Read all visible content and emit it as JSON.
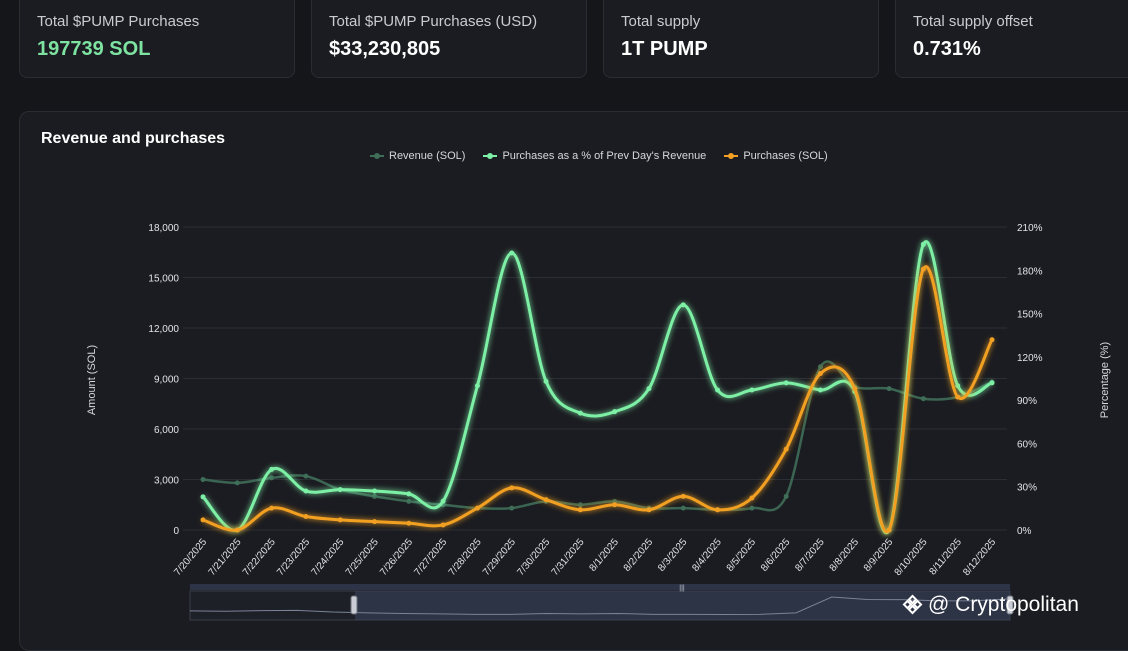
{
  "stats": [
    {
      "label": "Total $PUMP Purchases",
      "value": "197739 SOL"
    },
    {
      "label": "Total $PUMP Purchases (USD)",
      "value": "$33,230,805"
    },
    {
      "label": "Total supply",
      "value": "1T PUMP"
    },
    {
      "label": "Total supply offset",
      "value": "0.731%"
    }
  ],
  "panel": {
    "title": "Revenue and purchases"
  },
  "watermark": {
    "text": "@ Cryptopolitan"
  },
  "chart_data": {
    "type": "line",
    "title": "Revenue and purchases",
    "ylabel": "Amount (SOL)",
    "y2label": "Percentage (%)",
    "ylim": [
      0,
      18000
    ],
    "y2lim": [
      0,
      210
    ],
    "yticks": [
      "0",
      "3,000",
      "6,000",
      "9,000",
      "12,000",
      "15,000",
      "18,000"
    ],
    "y2ticks": [
      "0%",
      "30%",
      "60%",
      "90%",
      "120%",
      "150%",
      "180%",
      "210%"
    ],
    "categories": [
      "7/20/2025",
      "7/21/2025",
      "7/22/2025",
      "7/23/2025",
      "7/24/2025",
      "7/25/2025",
      "7/26/2025",
      "7/27/2025",
      "7/28/2025",
      "7/29/2025",
      "7/30/2025",
      "7/31/2025",
      "8/1/2025",
      "8/2/2025",
      "8/3/2025",
      "8/4/2025",
      "8/5/2025",
      "8/6/2025",
      "8/7/2025",
      "8/8/2025",
      "8/9/2025",
      "8/10/2025",
      "8/11/2025",
      "8/12/2025"
    ],
    "series": [
      {
        "name": "Revenue (SOL)",
        "axis": "left",
        "color": "#3f6e58",
        "values": [
          3000,
          2800,
          3100,
          3200,
          2400,
          2000,
          1700,
          1500,
          1300,
          1300,
          1700,
          1500,
          1700,
          1300,
          1300,
          1200,
          1300,
          2000,
          9700,
          8500,
          8400,
          7800,
          7900,
          8800
        ]
      },
      {
        "name": "Purchases as a % of Prev Day's Revenue",
        "axis": "right",
        "color": "#7df0a6",
        "values": [
          23,
          0,
          42,
          27,
          28,
          27,
          25,
          20,
          100,
          192,
          103,
          81,
          82,
          98,
          156,
          97,
          97,
          102,
          97,
          96,
          0,
          198,
          100,
          102
        ]
      },
      {
        "name": "Purchases (SOL)",
        "axis": "left",
        "color": "#f2a024",
        "values": [
          600,
          0,
          1300,
          800,
          600,
          500,
          400,
          300,
          1300,
          2500,
          1800,
          1200,
          1500,
          1200,
          2000,
          1200,
          1900,
          4800,
          9300,
          8400,
          0,
          15500,
          7900,
          11300
        ]
      }
    ]
  }
}
